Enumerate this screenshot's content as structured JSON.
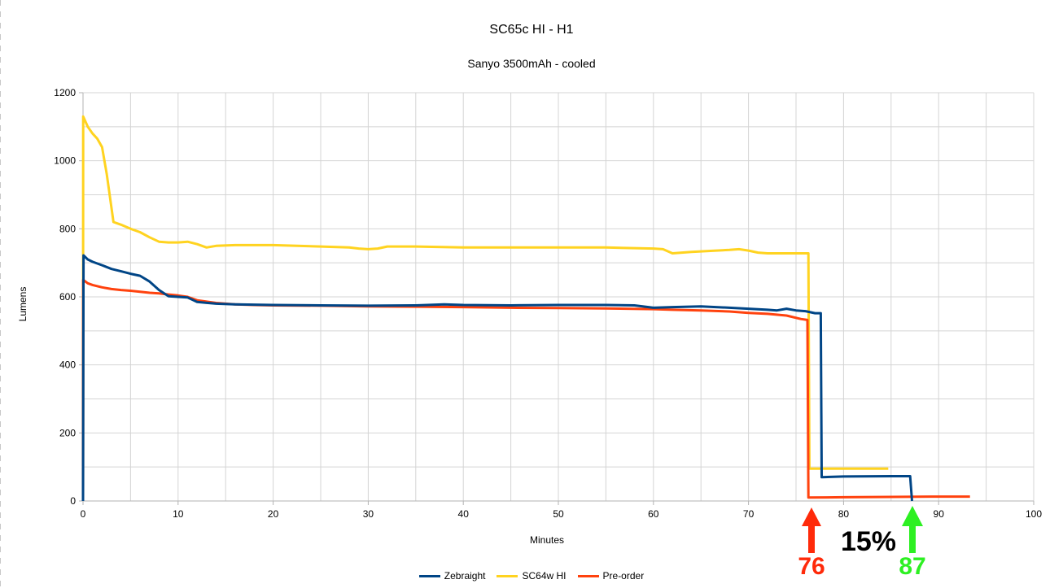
{
  "chart_data": {
    "type": "line",
    "title": "SC65c HI - H1",
    "subtitle": "Sanyo 3500mAh - cooled",
    "xlabel": "Minutes",
    "ylabel": "Lumens",
    "xlim": [
      0,
      100
    ],
    "ylim": [
      0,
      1200
    ],
    "x_ticks": [
      0,
      10,
      20,
      30,
      40,
      50,
      60,
      70,
      80,
      90,
      100
    ],
    "y_ticks": [
      0,
      200,
      400,
      600,
      800,
      1000,
      1200
    ],
    "grid": true,
    "legend_position": "bottom",
    "series": [
      {
        "name": "Zebraight",
        "color": "#004586",
        "points": [
          [
            0,
            0
          ],
          [
            0.05,
            722
          ],
          [
            0.5,
            710
          ],
          [
            1,
            703
          ],
          [
            2,
            693
          ],
          [
            3,
            682
          ],
          [
            4,
            675
          ],
          [
            5,
            668
          ],
          [
            6,
            662
          ],
          [
            7,
            645
          ],
          [
            8,
            620
          ],
          [
            9,
            602
          ],
          [
            10,
            600
          ],
          [
            11,
            598
          ],
          [
            12,
            585
          ],
          [
            14,
            580
          ],
          [
            16,
            578
          ],
          [
            18,
            577
          ],
          [
            20,
            576
          ],
          [
            25,
            575
          ],
          [
            30,
            574
          ],
          [
            35,
            575
          ],
          [
            38,
            578
          ],
          [
            40,
            576
          ],
          [
            45,
            575
          ],
          [
            50,
            576
          ],
          [
            55,
            576
          ],
          [
            58,
            575
          ],
          [
            60,
            568
          ],
          [
            62,
            570
          ],
          [
            65,
            572
          ],
          [
            68,
            568
          ],
          [
            70,
            565
          ],
          [
            72,
            562
          ],
          [
            73,
            560
          ],
          [
            74,
            565
          ],
          [
            75,
            560
          ],
          [
            76,
            558
          ],
          [
            77,
            552
          ],
          [
            77.6,
            552
          ],
          [
            77.7,
            70
          ],
          [
            80,
            72
          ],
          [
            85,
            73
          ],
          [
            86,
            73
          ],
          [
            87,
            73
          ],
          [
            87.2,
            0
          ]
        ]
      },
      {
        "name": "SC64w HI",
        "color": "#ffd320",
        "points": [
          [
            0,
            0
          ],
          [
            0.02,
            1130
          ],
          [
            0.5,
            1100
          ],
          [
            1,
            1080
          ],
          [
            1.5,
            1065
          ],
          [
            2,
            1040
          ],
          [
            2.5,
            960
          ],
          [
            3.2,
            820
          ],
          [
            4,
            812
          ],
          [
            5,
            800
          ],
          [
            6,
            790
          ],
          [
            7,
            775
          ],
          [
            8,
            762
          ],
          [
            9,
            760
          ],
          [
            10,
            760
          ],
          [
            11,
            762
          ],
          [
            12,
            755
          ],
          [
            13,
            745
          ],
          [
            14,
            750
          ],
          [
            16,
            752
          ],
          [
            18,
            752
          ],
          [
            20,
            752
          ],
          [
            25,
            748
          ],
          [
            28,
            745
          ],
          [
            29,
            742
          ],
          [
            30,
            740
          ],
          [
            31,
            742
          ],
          [
            32,
            748
          ],
          [
            35,
            748
          ],
          [
            40,
            745
          ],
          [
            45,
            745
          ],
          [
            50,
            745
          ],
          [
            55,
            745
          ],
          [
            60,
            742
          ],
          [
            61,
            740
          ],
          [
            62,
            728
          ],
          [
            64,
            732
          ],
          [
            66,
            735
          ],
          [
            68,
            738
          ],
          [
            69,
            740
          ],
          [
            70,
            736
          ],
          [
            71,
            730
          ],
          [
            72,
            728
          ],
          [
            74,
            728
          ],
          [
            75.5,
            728
          ],
          [
            76.3,
            728
          ],
          [
            76.4,
            95
          ],
          [
            78,
            95
          ],
          [
            80,
            95
          ],
          [
            82,
            95
          ],
          [
            84.7,
            95
          ]
        ]
      },
      {
        "name": "Pre-order",
        "color": "#ff420e",
        "points": [
          [
            0,
            0
          ],
          [
            0.02,
            650
          ],
          [
            0.5,
            640
          ],
          [
            1,
            635
          ],
          [
            2,
            628
          ],
          [
            3,
            623
          ],
          [
            4,
            620
          ],
          [
            5,
            618
          ],
          [
            6,
            615
          ],
          [
            7,
            612
          ],
          [
            8,
            610
          ],
          [
            9,
            607
          ],
          [
            10,
            604
          ],
          [
            11,
            600
          ],
          [
            12,
            590
          ],
          [
            14,
            582
          ],
          [
            16,
            578
          ],
          [
            18,
            576
          ],
          [
            20,
            575
          ],
          [
            25,
            574
          ],
          [
            30,
            572
          ],
          [
            35,
            571
          ],
          [
            40,
            570
          ],
          [
            45,
            568
          ],
          [
            50,
            567
          ],
          [
            55,
            566
          ],
          [
            60,
            564
          ],
          [
            62,
            562
          ],
          [
            65,
            560
          ],
          [
            68,
            557
          ],
          [
            70,
            553
          ],
          [
            72,
            550
          ],
          [
            74,
            545
          ],
          [
            75.5,
            535
          ],
          [
            76.2,
            532
          ],
          [
            76.3,
            10
          ],
          [
            80,
            11
          ],
          [
            85,
            12
          ],
          [
            90,
            13
          ],
          [
            93.3,
            13
          ]
        ]
      }
    ]
  },
  "annotations": {
    "left_arrow_value": "76",
    "right_arrow_value": "87",
    "percent_label": "15%",
    "left_color": "#ff2a0a",
    "right_color": "#2df022"
  }
}
